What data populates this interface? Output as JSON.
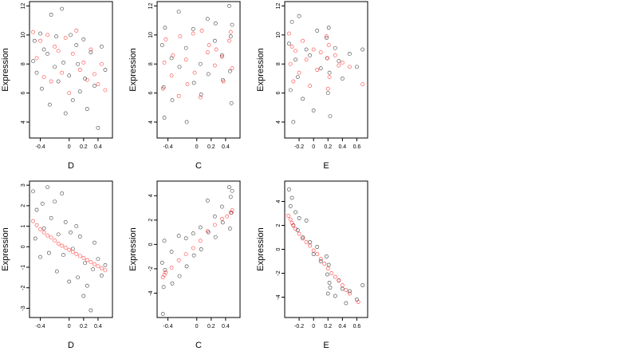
{
  "figure": {
    "background": "#ffffff",
    "color_observed": "#000000",
    "color_fitted": "#ff0000"
  },
  "chart_data": [
    {
      "type": "scatter",
      "xlabel": "D",
      "ylabel": "Expression",
      "xlim": [
        -0.55,
        0.6
      ],
      "ylim": [
        2.9,
        12.3
      ],
      "xticks": [
        -0.4,
        0.0,
        0.2,
        0.4
      ],
      "yticks": [
        4,
        6,
        8,
        10,
        12
      ],
      "series": [
        {
          "kind": "observed",
          "color": "#000000",
          "x": [
            -0.5,
            -0.48,
            -0.45,
            -0.4,
            -0.38,
            -0.35,
            -0.3,
            -0.27,
            -0.25,
            -0.2,
            -0.18,
            -0.15,
            -0.1,
            -0.08,
            -0.05,
            0.0,
            0.02,
            0.05,
            0.1,
            0.12,
            0.15,
            0.2,
            0.22,
            0.25,
            0.3,
            0.35,
            0.4,
            0.45,
            0.5
          ],
          "y": [
            8.2,
            9.6,
            7.4,
            10.1,
            6.3,
            9.0,
            8.7,
            5.2,
            11.4,
            7.8,
            9.9,
            6.8,
            11.8,
            8.1,
            4.6,
            7.2,
            10.0,
            5.5,
            9.3,
            8.0,
            6.1,
            9.7,
            7.0,
            4.9,
            8.8,
            6.5,
            3.6,
            9.2,
            7.6
          ]
        },
        {
          "kind": "fitted",
          "color": "#ff0000",
          "x": [
            -0.5,
            -0.45,
            -0.4,
            -0.35,
            -0.3,
            -0.25,
            -0.2,
            -0.15,
            -0.1,
            -0.05,
            0.0,
            0.05,
            0.1,
            0.15,
            0.2,
            0.25,
            0.3,
            0.35,
            0.4,
            0.45,
            0.5
          ],
          "y": [
            10.2,
            8.4,
            9.6,
            7.1,
            10.0,
            6.8,
            9.2,
            8.9,
            7.4,
            9.8,
            6.0,
            8.7,
            10.3,
            7.6,
            8.1,
            6.9,
            9.0,
            7.3,
            6.6,
            8.0,
            6.2
          ]
        }
      ]
    },
    {
      "type": "scatter",
      "xlabel": "C",
      "ylabel": "Expression",
      "xlim": [
        -0.55,
        0.6
      ],
      "ylim": [
        2.9,
        12.3
      ],
      "xticks": [
        -0.4,
        0.0,
        0.2,
        0.4
      ],
      "yticks": [
        4,
        6,
        8,
        10,
        12
      ],
      "series": [
        {
          "kind": "observed",
          "color": "#000000",
          "x": [
            -0.48,
            -0.46,
            -0.45,
            -0.44,
            -0.35,
            -0.34,
            -0.25,
            -0.24,
            -0.15,
            -0.14,
            -0.05,
            -0.04,
            0.05,
            0.06,
            0.15,
            0.16,
            0.25,
            0.26,
            0.35,
            0.36,
            0.45,
            0.46,
            0.47,
            0.48,
            0.49
          ],
          "y": [
            9.3,
            6.4,
            4.3,
            10.5,
            8.4,
            5.5,
            11.6,
            7.8,
            9.1,
            4.0,
            10.4,
            6.7,
            8.0,
            5.9,
            11.1,
            7.3,
            9.6,
            10.8,
            8.6,
            6.9,
            12.0,
            7.5,
            9.9,
            5.3,
            10.7
          ]
        },
        {
          "kind": "fitted",
          "color": "#ff0000",
          "x": [
            -0.47,
            -0.45,
            -0.43,
            -0.35,
            -0.33,
            -0.25,
            -0.23,
            -0.15,
            -0.13,
            -0.05,
            -0.03,
            0.05,
            0.07,
            0.15,
            0.17,
            0.25,
            0.27,
            0.35,
            0.37,
            0.45,
            0.47,
            0.49
          ],
          "y": [
            6.3,
            8.1,
            9.7,
            7.2,
            8.6,
            5.8,
            9.9,
            8.3,
            6.6,
            10.1,
            7.4,
            5.7,
            10.3,
            8.8,
            9.3,
            7.9,
            9.0,
            8.5,
            6.8,
            9.6,
            10.2,
            7.7
          ]
        }
      ]
    },
    {
      "type": "scatter",
      "xlabel": "E",
      "ylabel": "Expression",
      "xlim": [
        -0.4,
        0.75
      ],
      "ylim": [
        2.9,
        12.3
      ],
      "xticks": [
        -0.2,
        0.0,
        0.2,
        0.4,
        0.6
      ],
      "yticks": [
        4,
        6,
        8,
        10,
        12
      ],
      "series": [
        {
          "kind": "observed",
          "color": "#000000",
          "x": [
            -0.34,
            -0.32,
            -0.3,
            -0.28,
            -0.25,
            -0.22,
            -0.2,
            -0.15,
            -0.1,
            -0.05,
            0.0,
            0.05,
            0.1,
            0.18,
            0.19,
            0.2,
            0.21,
            0.22,
            0.23,
            0.3,
            0.35,
            0.4,
            0.5,
            0.6,
            0.68
          ],
          "y": [
            9.4,
            6.2,
            10.9,
            4.0,
            8.3,
            7.1,
            11.3,
            5.6,
            9.0,
            8.6,
            4.8,
            10.3,
            7.7,
            9.8,
            8.4,
            6.0,
            10.5,
            7.4,
            4.4,
            9.1,
            8.2,
            7.0,
            8.7,
            7.8,
            9.0
          ]
        },
        {
          "kind": "fitted",
          "color": "#ff0000",
          "x": [
            -0.34,
            -0.32,
            -0.3,
            -0.28,
            -0.25,
            -0.2,
            -0.15,
            -0.1,
            -0.05,
            0.0,
            0.05,
            0.1,
            0.18,
            0.19,
            0.2,
            0.21,
            0.22,
            0.3,
            0.35,
            0.4,
            0.5,
            0.68
          ],
          "y": [
            10.1,
            8.0,
            9.2,
            6.8,
            8.9,
            7.4,
            9.6,
            8.3,
            6.5,
            9.0,
            7.6,
            8.8,
            9.9,
            8.4,
            6.3,
            9.3,
            7.1,
            8.6,
            7.9,
            8.1,
            7.8,
            6.6
          ]
        }
      ]
    },
    {
      "type": "scatter",
      "xlabel": "D",
      "ylabel": "Expression",
      "xlim": [
        -0.55,
        0.6
      ],
      "ylim": [
        -3.45,
        3.2
      ],
      "xticks": [
        -0.4,
        0.0,
        0.2,
        0.4
      ],
      "yticks": [
        -3,
        -2,
        -1,
        0,
        1,
        2,
        3
      ],
      "series": [
        {
          "kind": "observed",
          "color": "#000000",
          "x": [
            -0.5,
            -0.47,
            -0.45,
            -0.4,
            -0.37,
            -0.35,
            -0.3,
            -0.28,
            -0.25,
            -0.2,
            -0.17,
            -0.15,
            -0.1,
            -0.08,
            -0.05,
            0.0,
            0.02,
            0.05,
            0.1,
            0.12,
            0.15,
            0.2,
            0.22,
            0.25,
            0.3,
            0.33,
            0.35,
            0.4,
            0.45,
            0.5
          ],
          "y": [
            2.7,
            0.4,
            1.8,
            -0.5,
            2.1,
            0.9,
            2.9,
            -0.3,
            1.4,
            2.2,
            -1.2,
            0.6,
            2.6,
            -0.4,
            1.2,
            -1.7,
            0.7,
            -0.1,
            1.0,
            -1.5,
            0.5,
            -2.4,
            -0.8,
            -1.9,
            -3.1,
            -1.1,
            0.2,
            -0.6,
            -1.4,
            -0.9
          ]
        },
        {
          "kind": "fitted",
          "color": "#ff0000",
          "x": [
            -0.5,
            -0.45,
            -0.4,
            -0.35,
            -0.3,
            -0.25,
            -0.2,
            -0.15,
            -0.1,
            -0.05,
            0.0,
            0.05,
            0.1,
            0.15,
            0.2,
            0.25,
            0.3,
            0.35,
            0.4,
            0.45,
            0.5
          ],
          "y": [
            1.25,
            1.05,
            0.85,
            0.7,
            0.55,
            0.45,
            0.3,
            0.15,
            0.05,
            -0.05,
            -0.15,
            -0.25,
            -0.35,
            -0.45,
            -0.55,
            -0.65,
            -0.75,
            -0.85,
            -0.95,
            -1.05,
            -1.15
          ]
        }
      ]
    },
    {
      "type": "scatter",
      "xlabel": "C",
      "ylabel": "Expression",
      "xlim": [
        -0.55,
        0.6
      ],
      "ylim": [
        -6.0,
        5.2
      ],
      "xticks": [
        -0.4,
        0.0,
        0.2,
        0.4
      ],
      "yticks": [
        -4,
        -2,
        0,
        2,
        4
      ],
      "series": [
        {
          "kind": "observed",
          "color": "#000000",
          "x": [
            -0.48,
            -0.47,
            -0.46,
            -0.45,
            -0.44,
            -0.35,
            -0.34,
            -0.25,
            -0.24,
            -0.15,
            -0.14,
            -0.05,
            -0.04,
            0.05,
            0.06,
            0.15,
            0.16,
            0.25,
            0.26,
            0.35,
            0.36,
            0.45,
            0.46,
            0.47,
            0.48,
            0.49
          ],
          "y": [
            -1.5,
            -5.7,
            -3.5,
            0.3,
            -2.1,
            -0.6,
            -3.2,
            0.7,
            -2.6,
            0.5,
            -1.8,
            0.9,
            -0.9,
            1.4,
            -0.4,
            3.6,
            1.0,
            2.3,
            0.6,
            3.1,
            1.8,
            4.7,
            1.3,
            3.9,
            2.6,
            4.4
          ]
        },
        {
          "kind": "fitted",
          "color": "#ff0000",
          "x": [
            -0.47,
            -0.45,
            -0.43,
            -0.35,
            -0.25,
            -0.15,
            -0.05,
            0.05,
            0.15,
            0.25,
            0.35,
            0.42,
            0.47,
            0.49
          ],
          "y": [
            -2.7,
            -2.5,
            -2.3,
            -1.9,
            -1.3,
            -0.8,
            -0.3,
            0.3,
            1.1,
            1.6,
            2.1,
            2.3,
            2.6,
            2.8
          ]
        }
      ]
    },
    {
      "type": "scatter",
      "xlabel": "E",
      "ylabel": "Expression",
      "xlim": [
        -0.4,
        0.75
      ],
      "ylim": [
        -5.7,
        5.7
      ],
      "xticks": [
        -0.2,
        0.0,
        0.2,
        0.4,
        0.6
      ],
      "yticks": [
        -4,
        -2,
        0,
        2,
        4
      ],
      "series": [
        {
          "kind": "observed",
          "color": "#000000",
          "x": [
            -0.34,
            -0.32,
            -0.3,
            -0.28,
            -0.25,
            -0.22,
            -0.2,
            -0.15,
            -0.1,
            -0.05,
            0.0,
            0.05,
            0.1,
            0.18,
            0.19,
            0.2,
            0.21,
            0.22,
            0.23,
            0.3,
            0.35,
            0.4,
            0.45,
            0.5,
            0.6,
            0.68
          ],
          "y": [
            5.0,
            3.6,
            4.3,
            2.0,
            3.1,
            1.6,
            2.6,
            1.0,
            2.4,
            0.6,
            -0.4,
            0.2,
            -1.0,
            -0.6,
            -2.1,
            -3.7,
            -1.3,
            -2.8,
            -3.2,
            -3.9,
            -2.6,
            -3.3,
            -4.5,
            -3.5,
            -4.2,
            -3.0
          ]
        },
        {
          "kind": "fitted",
          "color": "#ff0000",
          "x": [
            -0.35,
            -0.32,
            -0.3,
            -0.28,
            -0.25,
            -0.2,
            -0.15,
            -0.1,
            -0.05,
            0.0,
            0.05,
            0.1,
            0.15,
            0.2,
            0.25,
            0.3,
            0.35,
            0.4,
            0.45,
            0.5,
            0.62
          ],
          "y": [
            2.8,
            2.5,
            2.2,
            2.0,
            1.7,
            1.3,
            0.9,
            0.6,
            0.3,
            -0.1,
            -0.4,
            -0.8,
            -1.2,
            -1.6,
            -2.0,
            -2.3,
            -2.6,
            -3.0,
            -3.4,
            -3.7,
            -4.4
          ]
        }
      ]
    }
  ]
}
